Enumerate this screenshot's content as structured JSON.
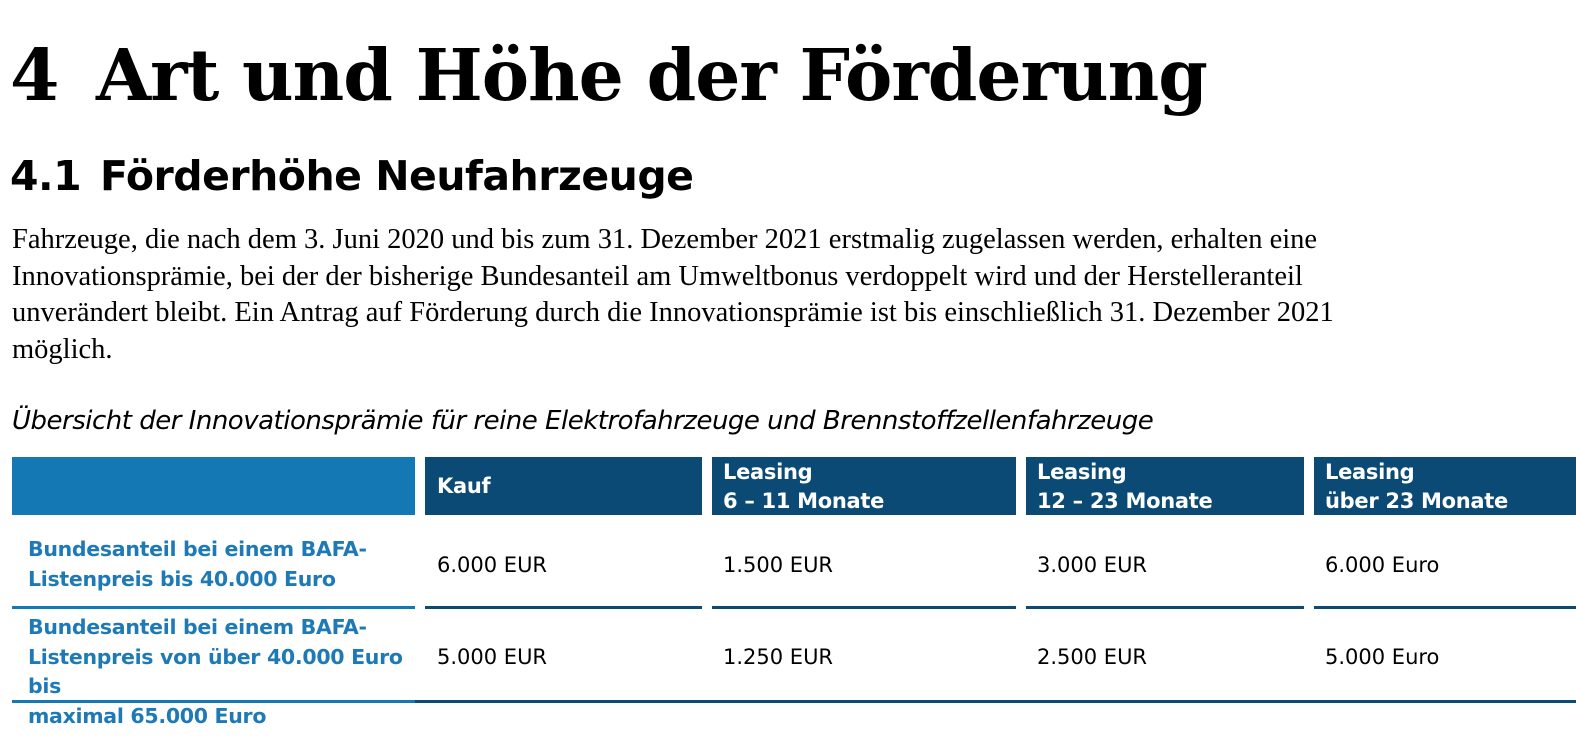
{
  "heading1": {
    "number": "4",
    "text": "Art und Höhe der Förderung"
  },
  "heading2": {
    "number": "4.1",
    "text": "Förderhöhe Neufahrzeuge"
  },
  "paragraph": {
    "line1": "Fahrzeuge, die nach dem 3. Juni 2020 und bis zum 31. Dezember 2021 erstmalig zugelassen werden, erhalten eine",
    "line2": "Innovationsprämie, bei der der bisherige Bundesanteil am Umweltbonus verdoppelt wird und der Herstelleranteil",
    "line3": "unverändert bleibt. Ein Antrag auf Förderung durch die Innovationsprämie ist bis einschließlich 31. Dezember 2021",
    "line4": "möglich."
  },
  "caption": "Übersicht der Innovationsprämie für reine Elektrofahrzeuge und Brennstoffzellenfahrzeuge",
  "table": {
    "headers": [
      {
        "line1": "",
        "line2": ""
      },
      {
        "line1": "Kauf",
        "line2": ""
      },
      {
        "line1": "Leasing",
        "line2": "6 – 11 Monate"
      },
      {
        "line1": "Leasing",
        "line2": "12 – 23 Monate"
      },
      {
        "line1": "Leasing",
        "line2": "über 23 Monate"
      }
    ],
    "rows": [
      {
        "label_lines": [
          "Bundesanteil bei einem BAFA-",
          "Listenpreis bis 40.000 Euro"
        ],
        "values": [
          "6.000 EUR",
          "1.500 EUR",
          "3.000 EUR",
          "6.000 Euro"
        ]
      },
      {
        "label_lines": [
          "Bundesanteil bei einem BAFA-",
          "Listenpreis von über 40.000 Euro bis",
          "maximal 65.000 Euro"
        ],
        "values": [
          "5.000 EUR",
          "1.250 EUR",
          "2.500 EUR",
          "5.000 Euro"
        ]
      }
    ]
  },
  "colors": {
    "header_first": "#1478b4",
    "header": "#0a4a75",
    "row_label": "#1e7ab7"
  }
}
